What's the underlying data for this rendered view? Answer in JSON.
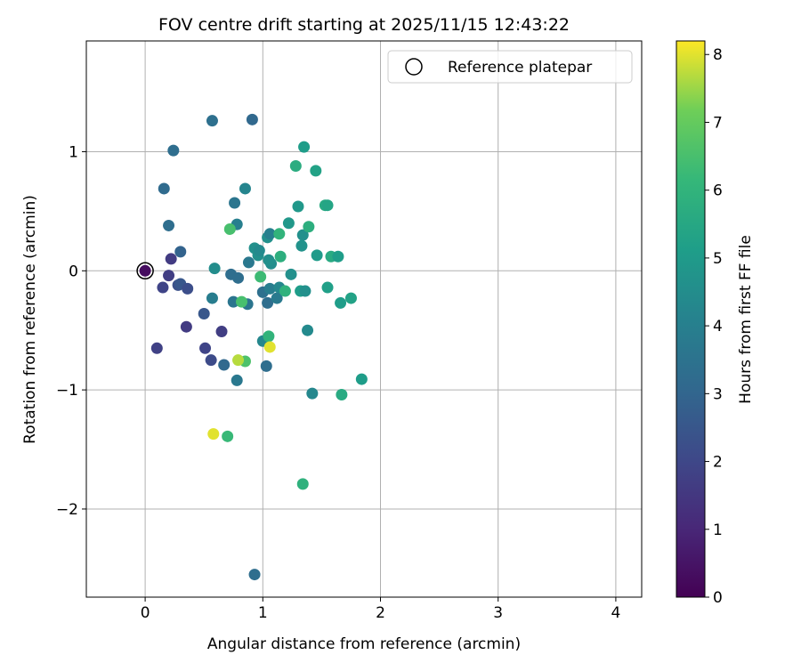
{
  "chart_data": {
    "type": "scatter",
    "title": "FOV centre drift starting at 2025/11/15 12:43:22",
    "xlabel": "Angular distance from reference (arcmin)",
    "ylabel": "Rotation from reference (arcmin)",
    "xlim": [
      -0.5,
      4.22
    ],
    "ylim": [
      -2.74,
      1.93
    ],
    "xticks": [
      0,
      1,
      2,
      3,
      4
    ],
    "xtick_labels": [
      "0",
      "1",
      "2",
      "3",
      "4"
    ],
    "yticks": [
      -2,
      -1,
      0,
      1
    ],
    "ytick_labels": [
      "−2",
      "−1",
      "0",
      "1"
    ],
    "grid": true,
    "legend": {
      "label": "Reference platepar",
      "position": "top-right"
    },
    "reference_point": {
      "x": 0,
      "y": 0
    },
    "colorbar": {
      "label": "Hours from first FF file",
      "min": 0,
      "max": 8.2,
      "ticks": [
        0,
        1,
        2,
        3,
        4,
        5,
        6,
        7,
        8
      ],
      "tick_labels": [
        "0",
        "1",
        "2",
        "3",
        "4",
        "5",
        "6",
        "7",
        "8"
      ],
      "colormap": "viridis"
    },
    "points": [
      {
        "x": 0.0,
        "y": 0.0,
        "h": 0.3
      },
      {
        "x": 0.1,
        "y": -0.65,
        "h": 1.8
      },
      {
        "x": 0.15,
        "y": -0.14,
        "h": 1.9
      },
      {
        "x": 0.2,
        "y": -0.04,
        "h": 1.7
      },
      {
        "x": 0.22,
        "y": 0.1,
        "h": 1.6
      },
      {
        "x": 0.28,
        "y": -0.12,
        "h": 2.3
      },
      {
        "x": 0.3,
        "y": -0.11,
        "h": 2.5
      },
      {
        "x": 0.36,
        "y": -0.15,
        "h": 2.2
      },
      {
        "x": 0.3,
        "y": 0.16,
        "h": 2.9
      },
      {
        "x": 0.35,
        "y": -0.47,
        "h": 1.6
      },
      {
        "x": 0.5,
        "y": -0.36,
        "h": 2.5
      },
      {
        "x": 0.51,
        "y": -0.65,
        "h": 1.9
      },
      {
        "x": 0.56,
        "y": -0.75,
        "h": 2.1
      },
      {
        "x": 0.65,
        "y": -0.51,
        "h": 1.7
      },
      {
        "x": 0.67,
        "y": -0.79,
        "h": 3.1
      },
      {
        "x": 0.16,
        "y": 0.69,
        "h": 3.2
      },
      {
        "x": 0.2,
        "y": 0.38,
        "h": 3.3
      },
      {
        "x": 0.24,
        "y": 1.01,
        "h": 3.3
      },
      {
        "x": 0.57,
        "y": 1.26,
        "h": 3.4
      },
      {
        "x": 0.91,
        "y": 1.27,
        "h": 3.1
      },
      {
        "x": 0.57,
        "y": -0.23,
        "h": 3.9
      },
      {
        "x": 0.59,
        "y": 0.02,
        "h": 4.5
      },
      {
        "x": 0.73,
        "y": -0.03,
        "h": 3.3
      },
      {
        "x": 0.75,
        "y": -0.26,
        "h": 3.6
      },
      {
        "x": 0.76,
        "y": 0.57,
        "h": 3.6
      },
      {
        "x": 0.78,
        "y": 0.39,
        "h": 4.0
      },
      {
        "x": 0.79,
        "y": -0.06,
        "h": 3.3
      },
      {
        "x": 0.78,
        "y": -0.92,
        "h": 3.7
      },
      {
        "x": 0.85,
        "y": 0.69,
        "h": 4.2
      },
      {
        "x": 0.87,
        "y": -0.28,
        "h": 3.6
      },
      {
        "x": 0.88,
        "y": 0.07,
        "h": 3.7
      },
      {
        "x": 0.93,
        "y": 0.19,
        "h": 4.6
      },
      {
        "x": 0.96,
        "y": 0.13,
        "h": 4.6
      },
      {
        "x": 0.97,
        "y": 0.17,
        "h": 4.4
      },
      {
        "x": 1.0,
        "y": -0.18,
        "h": 3.4
      },
      {
        "x": 1.0,
        "y": -0.59,
        "h": 4.3
      },
      {
        "x": 1.04,
        "y": -0.27,
        "h": 3.3
      },
      {
        "x": 1.04,
        "y": 0.28,
        "h": 4.6
      },
      {
        "x": 1.06,
        "y": 0.31,
        "h": 4.0
      },
      {
        "x": 1.06,
        "y": -0.15,
        "h": 3.9
      },
      {
        "x": 1.07,
        "y": 0.06,
        "h": 4.5
      },
      {
        "x": 1.03,
        "y": -0.8,
        "h": 3.3
      },
      {
        "x": 1.12,
        "y": -0.23,
        "h": 3.8
      },
      {
        "x": 1.14,
        "y": -0.14,
        "h": 4.3
      },
      {
        "x": 1.05,
        "y": 0.09,
        "h": 4.6
      },
      {
        "x": 0.98,
        "y": -0.05,
        "h": 6.3
      },
      {
        "x": 1.05,
        "y": -0.55,
        "h": 6.0
      },
      {
        "x": 1.06,
        "y": -0.64,
        "h": 8.0
      },
      {
        "x": 1.14,
        "y": 0.31,
        "h": 6.0
      },
      {
        "x": 1.15,
        "y": 0.12,
        "h": 5.8
      },
      {
        "x": 1.19,
        "y": -0.17,
        "h": 5.9
      },
      {
        "x": 1.22,
        "y": 0.4,
        "h": 4.9
      },
      {
        "x": 1.24,
        "y": -0.03,
        "h": 4.6
      },
      {
        "x": 1.28,
        "y": 0.88,
        "h": 5.7
      },
      {
        "x": 1.3,
        "y": 0.54,
        "h": 4.9
      },
      {
        "x": 1.32,
        "y": -0.17,
        "h": 5.1
      },
      {
        "x": 1.33,
        "y": 0.21,
        "h": 4.7
      },
      {
        "x": 1.34,
        "y": 0.3,
        "h": 4.6
      },
      {
        "x": 1.35,
        "y": 1.04,
        "h": 5.1
      },
      {
        "x": 1.36,
        "y": -0.17,
        "h": 4.6
      },
      {
        "x": 1.38,
        "y": -0.5,
        "h": 4.4
      },
      {
        "x": 1.39,
        "y": 0.37,
        "h": 5.8
      },
      {
        "x": 1.42,
        "y": -1.03,
        "h": 4.3
      },
      {
        "x": 1.45,
        "y": 0.84,
        "h": 5.3
      },
      {
        "x": 1.46,
        "y": 0.13,
        "h": 5.0
      },
      {
        "x": 1.53,
        "y": 0.55,
        "h": 5.6
      },
      {
        "x": 1.55,
        "y": 0.55,
        "h": 5.4
      },
      {
        "x": 1.55,
        "y": -0.14,
        "h": 5.2
      },
      {
        "x": 1.58,
        "y": 0.12,
        "h": 5.6
      },
      {
        "x": 1.64,
        "y": 0.12,
        "h": 5.1
      },
      {
        "x": 1.66,
        "y": -0.27,
        "h": 5.1
      },
      {
        "x": 1.67,
        "y": -1.04,
        "h": 5.6
      },
      {
        "x": 1.75,
        "y": -0.23,
        "h": 5.3
      },
      {
        "x": 1.84,
        "y": -0.91,
        "h": 5.1
      },
      {
        "x": 0.72,
        "y": 0.35,
        "h": 6.5
      },
      {
        "x": 0.82,
        "y": -0.26,
        "h": 6.5
      },
      {
        "x": 0.85,
        "y": -0.76,
        "h": 6.6
      },
      {
        "x": 0.79,
        "y": -0.75,
        "h": 7.7
      },
      {
        "x": 0.58,
        "y": -1.37,
        "h": 8.0
      },
      {
        "x": 0.7,
        "y": -1.39,
        "h": 6.2
      },
      {
        "x": 1.34,
        "y": -1.79,
        "h": 5.9
      },
      {
        "x": 0.93,
        "y": -2.55,
        "h": 3.3
      }
    ]
  }
}
